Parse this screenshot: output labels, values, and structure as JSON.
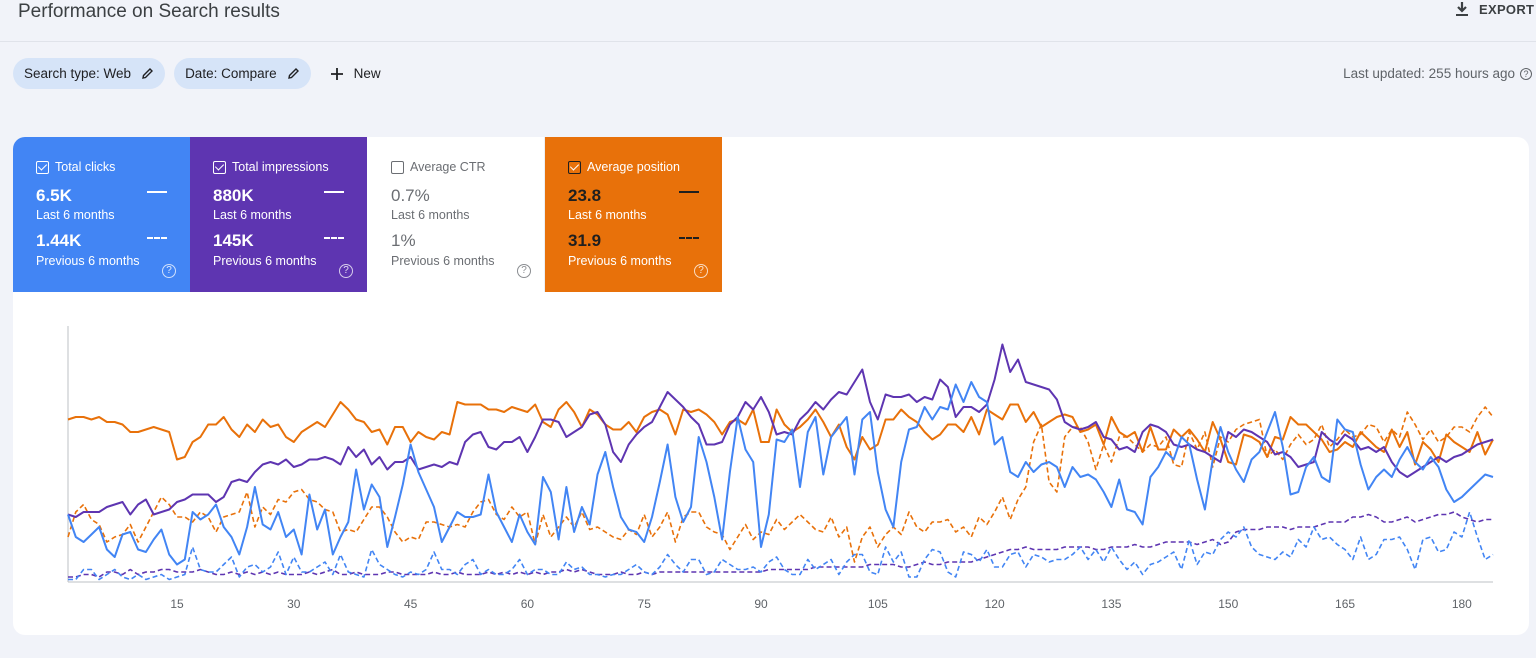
{
  "header": {
    "title": "Performance on Search results",
    "export_label": "EXPORT",
    "export_icon": "download-icon"
  },
  "filters": {
    "chips": [
      {
        "label": "Search type: Web",
        "icon": "pencil-icon"
      },
      {
        "label": "Date: Compare",
        "icon": "pencil-icon"
      }
    ],
    "new_label": "New",
    "last_updated": "Last updated: 255 hours ago"
  },
  "metrics": [
    {
      "label": "Total clicks",
      "checked": true,
      "value_current": "6.5K",
      "period_current": "Last 6 months",
      "value_previous": "1.44K",
      "period_previous": "Previous 6 months",
      "color": "#4285f4"
    },
    {
      "label": "Total impressions",
      "checked": true,
      "value_current": "880K",
      "period_current": "Last 6 months",
      "value_previous": "145K",
      "period_previous": "Previous 6 months",
      "color": "#5e35b1"
    },
    {
      "label": "Average CTR",
      "checked": false,
      "value_current": "0.7%",
      "period_current": "Last 6 months",
      "value_previous": "1%",
      "period_previous": "Previous 6 months",
      "color": "#00897b"
    },
    {
      "label": "Average position",
      "checked": true,
      "value_current": "23.8",
      "period_current": "Last 6 months",
      "value_previous": "31.9",
      "period_previous": "Previous 6 months",
      "color": "#e8710a"
    }
  ],
  "chart_data": {
    "type": "line",
    "title": "",
    "xlabel": "",
    "ylabel": "",
    "x_ticks": [
      15,
      30,
      45,
      60,
      75,
      90,
      105,
      120,
      135,
      150,
      165,
      180
    ],
    "xlim": [
      1,
      184
    ],
    "ylim": [
      0,
      100
    ],
    "grid": false,
    "series": [
      {
        "name": "Average position",
        "color": "#e8710a",
        "dash": false,
        "values": [
          65,
          66,
          66,
          65,
          66,
          64,
          64,
          63,
          60,
          60,
          61,
          62,
          61,
          60,
          49,
          50,
          56,
          58,
          63,
          63,
          66,
          61,
          58,
          63,
          60,
          65,
          62,
          63,
          58,
          56,
          60,
          62,
          64,
          62,
          67,
          72,
          69,
          65,
          64,
          60,
          61,
          55,
          62,
          62,
          56,
          60,
          58,
          57,
          60,
          59,
          72,
          71,
          71,
          71,
          69,
          69,
          68,
          70,
          69,
          68,
          71,
          64,
          62,
          69,
          72,
          68,
          62,
          69,
          67,
          63,
          61,
          61,
          64,
          60,
          66,
          68,
          69,
          67,
          59,
          69,
          68,
          69,
          67,
          64,
          59,
          64,
          65,
          63,
          69,
          56,
          56,
          69,
          63,
          60,
          62,
          65,
          69,
          64,
          58,
          63,
          54,
          49,
          58,
          53,
          55,
          65,
          65,
          69,
          66,
          64,
          60,
          57,
          59,
          63,
          63,
          60,
          66,
          59,
          69,
          67,
          65,
          71,
          71,
          64,
          68,
          62,
          64,
          66,
          67,
          66,
          60,
          61,
          63,
          55,
          66,
          60,
          58,
          60,
          52,
          62,
          53,
          53,
          61,
          58,
          61,
          57,
          52,
          64,
          57,
          48,
          47,
          59,
          58,
          56,
          50,
          58,
          57,
          66,
          63,
          63,
          60,
          57,
          52,
          53,
          56,
          54,
          60,
          57,
          54,
          52,
          61,
          54,
          60,
          47,
          56,
          53,
          48,
          59,
          56,
          54,
          52,
          60,
          51,
          57
        ]
      },
      {
        "name": "Average position (previous)",
        "color": "#e8710a",
        "dash": true,
        "values": [
          18,
          28,
          31,
          25,
          23,
          16,
          18,
          19,
          23,
          16,
          22,
          28,
          34,
          31,
          26,
          26,
          24,
          28,
          26,
          20,
          26,
          27,
          28,
          36,
          22,
          30,
          27,
          33,
          32,
          36,
          37,
          33,
          32,
          29,
          28,
          20,
          21,
          20,
          25,
          30,
          30,
          26,
          20,
          16,
          18,
          17,
          24,
          24,
          23,
          22,
          23,
          22,
          28,
          32,
          33,
          27,
          25,
          30,
          26,
          28,
          15,
          27,
          18,
          22,
          26,
          22,
          28,
          21,
          22,
          20,
          18,
          17,
          21,
          19,
          27,
          18,
          22,
          28,
          16,
          26,
          28,
          28,
          22,
          20,
          19,
          13,
          18,
          23,
          17,
          20,
          19,
          25,
          21,
          24,
          27,
          24,
          21,
          20,
          26,
          18,
          22,
          8,
          18,
          22,
          14,
          19,
          22,
          19,
          28,
          22,
          20,
          24,
          24,
          25,
          20,
          22,
          18,
          26,
          23,
          28,
          34,
          25,
          33,
          38,
          56,
          63,
          40,
          36,
          58,
          62,
          62,
          56,
          45,
          55,
          48,
          58,
          58,
          55,
          52,
          55,
          54,
          58,
          47,
          46,
          60,
          53,
          60,
          46,
          58,
          56,
          61,
          63,
          64,
          65,
          50,
          53,
          49,
          55,
          59,
          55,
          57,
          63,
          54,
          57,
          61,
          58,
          59,
          63,
          62,
          56,
          61,
          58,
          68,
          63,
          57,
          61,
          56,
          58,
          62,
          62,
          60,
          66,
          70,
          66
        ]
      },
      {
        "name": "Total impressions",
        "color": "#5e35b1",
        "dash": false,
        "values": [
          27,
          26,
          28,
          28,
          28,
          30,
          31,
          32,
          27,
          31,
          33,
          27,
          28,
          29,
          32,
          33,
          35,
          35,
          35,
          32,
          34,
          40,
          41,
          40,
          44,
          47,
          48,
          47,
          49,
          46,
          47,
          49,
          49,
          50,
          49,
          47,
          54,
          50,
          53,
          47,
          50,
          45,
          48,
          48,
          50,
          45,
          46,
          47,
          46,
          48,
          47,
          56,
          59,
          60,
          54,
          53,
          56,
          56,
          58,
          52,
          58,
          65,
          65,
          64,
          58,
          60,
          62,
          67,
          68,
          63,
          52,
          48,
          55,
          59,
          62,
          64,
          70,
          76,
          73,
          70,
          66,
          63,
          55,
          55,
          56,
          63,
          66,
          72,
          69,
          74,
          68,
          59,
          60,
          59,
          65,
          68,
          72,
          69,
          73,
          76,
          75,
          80,
          85,
          72,
          65,
          75,
          74,
          74,
          75,
          72,
          74,
          73,
          81,
          78,
          66,
          70,
          70,
          68,
          71,
          81,
          95,
          84,
          89,
          80,
          79,
          78,
          77,
          73,
          64,
          62,
          61,
          62,
          64,
          58,
          57,
          53,
          54,
          52,
          60,
          63,
          62,
          60,
          55,
          54,
          55,
          53,
          52,
          50,
          48,
          60,
          58,
          61,
          60,
          58,
          56,
          51,
          52,
          50,
          46,
          47,
          48,
          60,
          57,
          55,
          59,
          57,
          53,
          54,
          52,
          54,
          48,
          44,
          42,
          44,
          46,
          48,
          50,
          48,
          50,
          51,
          53,
          55,
          56,
          57
        ]
      },
      {
        "name": "Total impressions (previous)",
        "color": "#5e35b1",
        "dash": true,
        "values": [
          2,
          2,
          3,
          3,
          2,
          4,
          4,
          3,
          5,
          3,
          4,
          4,
          5,
          5,
          4,
          4,
          4,
          5,
          4,
          3,
          3,
          4,
          3,
          4,
          3,
          4,
          3,
          4,
          3,
          3,
          3,
          4,
          3,
          4,
          5,
          3,
          3,
          4,
          3,
          3,
          3,
          4,
          4,
          3,
          3,
          3,
          3,
          4,
          3,
          3,
          4,
          3,
          3,
          3,
          4,
          3,
          4,
          3,
          4,
          3,
          4,
          3,
          4,
          4,
          5,
          4,
          5,
          4,
          3,
          3,
          3,
          4,
          3,
          3,
          4,
          3,
          4,
          4,
          4,
          4,
          4,
          4,
          4,
          4,
          4,
          4,
          4,
          4,
          4,
          4,
          5,
          5,
          5,
          5,
          5,
          5,
          6,
          6,
          6,
          6,
          6,
          6,
          6,
          7,
          7,
          7,
          7,
          6,
          6,
          7,
          8,
          7,
          7,
          8,
          8,
          8,
          8,
          9,
          10,
          11,
          12,
          13,
          13,
          14,
          13,
          13,
          13,
          13,
          14,
          14,
          14,
          14,
          13,
          13,
          14,
          14,
          14,
          15,
          14,
          14,
          15,
          16,
          16,
          16,
          16,
          15,
          16,
          17,
          15,
          16,
          20,
          21,
          21,
          21,
          22,
          22,
          22,
          21,
          22,
          22,
          22,
          23,
          24,
          24,
          24,
          26,
          26,
          27,
          26,
          24,
          24,
          25,
          26,
          24,
          25,
          26,
          27,
          27,
          28,
          26,
          25,
          24,
          25,
          25
        ]
      },
      {
        "name": "Total clicks",
        "color": "#4285f4",
        "dash": false,
        "values": [
          27,
          18,
          16,
          19,
          22,
          13,
          10,
          19,
          20,
          13,
          12,
          17,
          21,
          11,
          7,
          9,
          28,
          25,
          27,
          31,
          22,
          18,
          11,
          22,
          38,
          23,
          21,
          28,
          18,
          21,
          11,
          35,
          21,
          29,
          11,
          18,
          24,
          45,
          29,
          39,
          34,
          14,
          26,
          39,
          55,
          44,
          37,
          30,
          16,
          22,
          28,
          26,
          26,
          27,
          43,
          28,
          22,
          16,
          27,
          20,
          15,
          42,
          36,
          17,
          38,
          20,
          30,
          23,
          43,
          52,
          38,
          26,
          21,
          20,
          16,
          26,
          40,
          55,
          34,
          24,
          30,
          58,
          48,
          34,
          17,
          44,
          66,
          53,
          48,
          14,
          27,
          57,
          56,
          61,
          38,
          60,
          66,
          43,
          58,
          62,
          66,
          43,
          65,
          68,
          44,
          29,
          22,
          48,
          61,
          62,
          70,
          65,
          70,
          69,
          79,
          72,
          80,
          74,
          72,
          55,
          58,
          44,
          42,
          48,
          44,
          47,
          48,
          46,
          38,
          46,
          42,
          43,
          41,
          36,
          30,
          41,
          29,
          28,
          23,
          42,
          46,
          52,
          49,
          58,
          55,
          41,
          29,
          49,
          62,
          52,
          45,
          40,
          49,
          52,
          60,
          68,
          54,
          35,
          36,
          46,
          50,
          42,
          40,
          65,
          61,
          60,
          47,
          37,
          42,
          45,
          42,
          49,
          54,
          48,
          45,
          50,
          46,
          37,
          32,
          34,
          37,
          40,
          43,
          42
        ]
      },
      {
        "name": "Total clicks (previous)",
        "color": "#4285f4",
        "dash": true,
        "values": [
          1,
          1,
          5,
          5,
          1,
          3,
          5,
          2,
          1,
          3,
          1,
          2,
          3,
          1,
          2,
          3,
          14,
          5,
          4,
          4,
          7,
          10,
          2,
          6,
          7,
          4,
          6,
          12,
          3,
          10,
          4,
          4,
          6,
          8,
          3,
          11,
          4,
          3,
          2,
          13,
          7,
          5,
          3,
          2,
          4,
          3,
          5,
          12,
          5,
          5,
          3,
          7,
          9,
          3,
          5,
          3,
          3,
          5,
          9,
          3,
          5,
          5,
          3,
          3,
          8,
          5,
          6,
          3,
          3,
          2,
          3,
          3,
          5,
          7,
          4,
          3,
          6,
          11,
          7,
          4,
          9,
          9,
          3,
          4,
          9,
          7,
          5,
          5,
          6,
          4,
          8,
          10,
          5,
          3,
          3,
          9,
          5,
          7,
          9,
          3,
          8,
          11,
          11,
          4,
          3,
          14,
          8,
          12,
          2,
          2,
          9,
          13,
          12,
          4,
          2,
          12,
          11,
          8,
          13,
          6,
          6,
          11,
          12,
          6,
          11,
          10,
          8,
          9,
          9,
          11,
          14,
          9,
          13,
          8,
          14,
          9,
          5,
          8,
          3,
          7,
          8,
          10,
          12,
          5,
          17,
          7,
          12,
          11,
          17,
          20,
          18,
          22,
          14,
          11,
          10,
          9,
          12,
          10,
          17,
          14,
          22,
          17,
          18,
          15,
          13,
          9,
          18,
          9,
          11,
          17,
          17,
          18,
          13,
          5,
          17,
          18,
          12,
          13,
          20,
          18,
          28,
          18,
          9,
          11
        ]
      }
    ]
  }
}
